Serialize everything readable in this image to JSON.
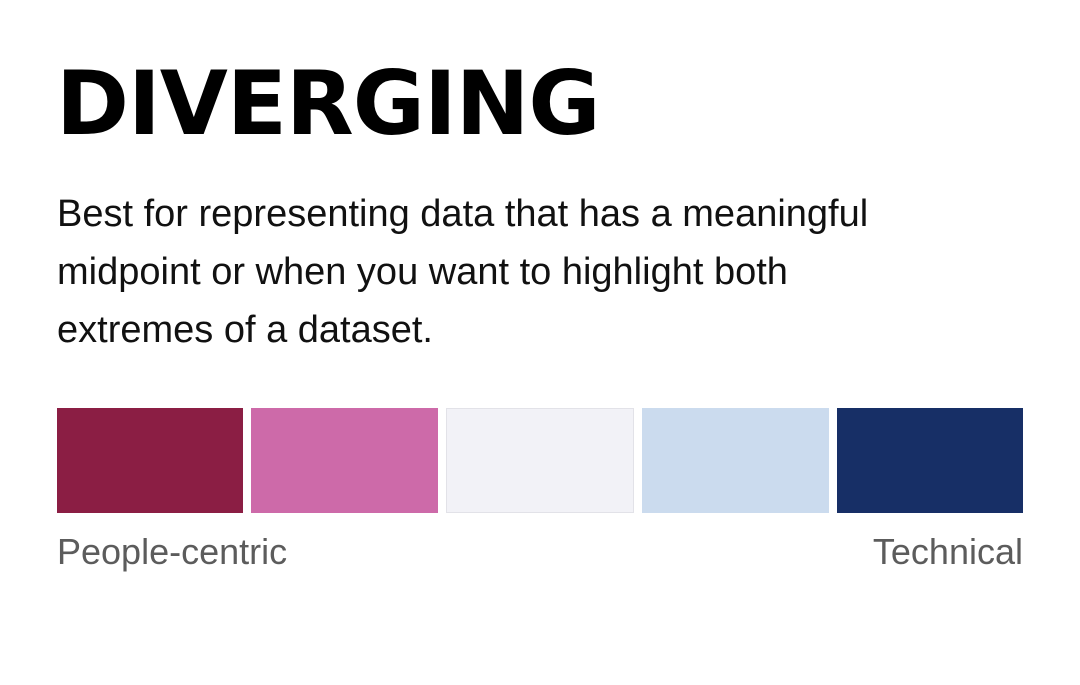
{
  "title": "DIVERGING",
  "description": "Best for representing data that has a meaningful midpoint or when you want to highlight both extremes of a dataset.",
  "palette": {
    "swatches": [
      {
        "color": "#8b1e44"
      },
      {
        "color": "#cd6aa9"
      },
      {
        "color": "#f2f2f7"
      },
      {
        "color": "#cbdbee"
      },
      {
        "color": "#172f66"
      }
    ]
  },
  "labels": {
    "left": "People-centric",
    "right": "Technical"
  }
}
